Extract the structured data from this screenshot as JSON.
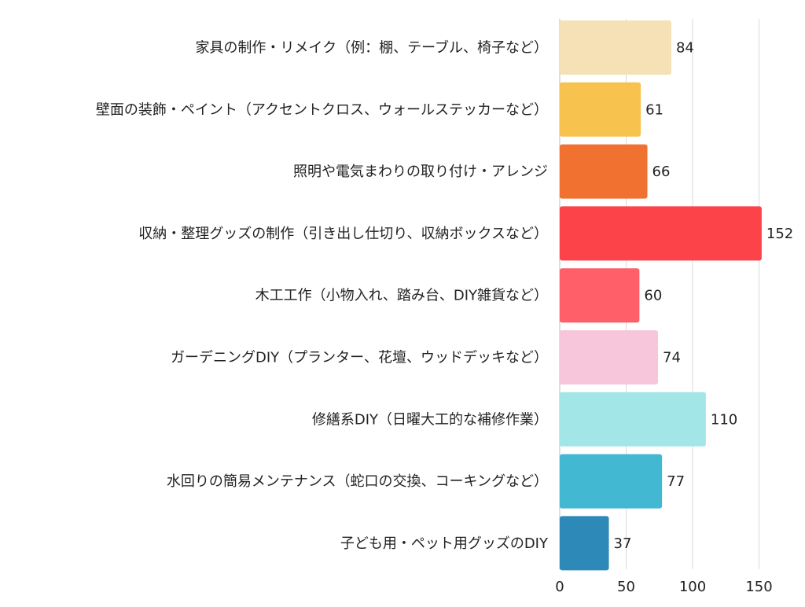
{
  "chart_data": {
    "type": "bar",
    "orientation": "horizontal",
    "categories": [
      "家具の制作・リメイク（例：棚、テーブル、椅子など）",
      "壁面の装飾・ペイント（アクセントクロス、ウォールステッカーなど）",
      "照明や電気まわりの取り付け・アレンジ",
      "収納・整理グッズの制作（引き出し仕切り、収納ボックスなど）",
      "木工工作（小物入れ、踏み台、DIY雑貨など）",
      "ガーデニングDIY（プランター、花壇、ウッドデッキなど）",
      "修繕系DIY（日曜大工的な補修作業）",
      "水回りの簡易メンテナンス（蛇口の交換、コーキングなど）",
      "子ども用・ペット用グッズのDIY"
    ],
    "values": [
      84,
      61,
      66,
      152,
      60,
      74,
      110,
      77,
      37
    ],
    "colors": [
      "#F5E1B5",
      "#F7C24E",
      "#F17230",
      "#FB4349",
      "#FE5F68",
      "#F8C6DB",
      "#A2E6E8",
      "#43B8D3",
      "#2D89B7"
    ],
    "xlim": [
      0,
      175
    ],
    "xticks": [
      0,
      50,
      100,
      150
    ],
    "grid": true,
    "data_labels": true,
    "legend": "none",
    "title": "",
    "xlabel": "",
    "ylabel": ""
  }
}
